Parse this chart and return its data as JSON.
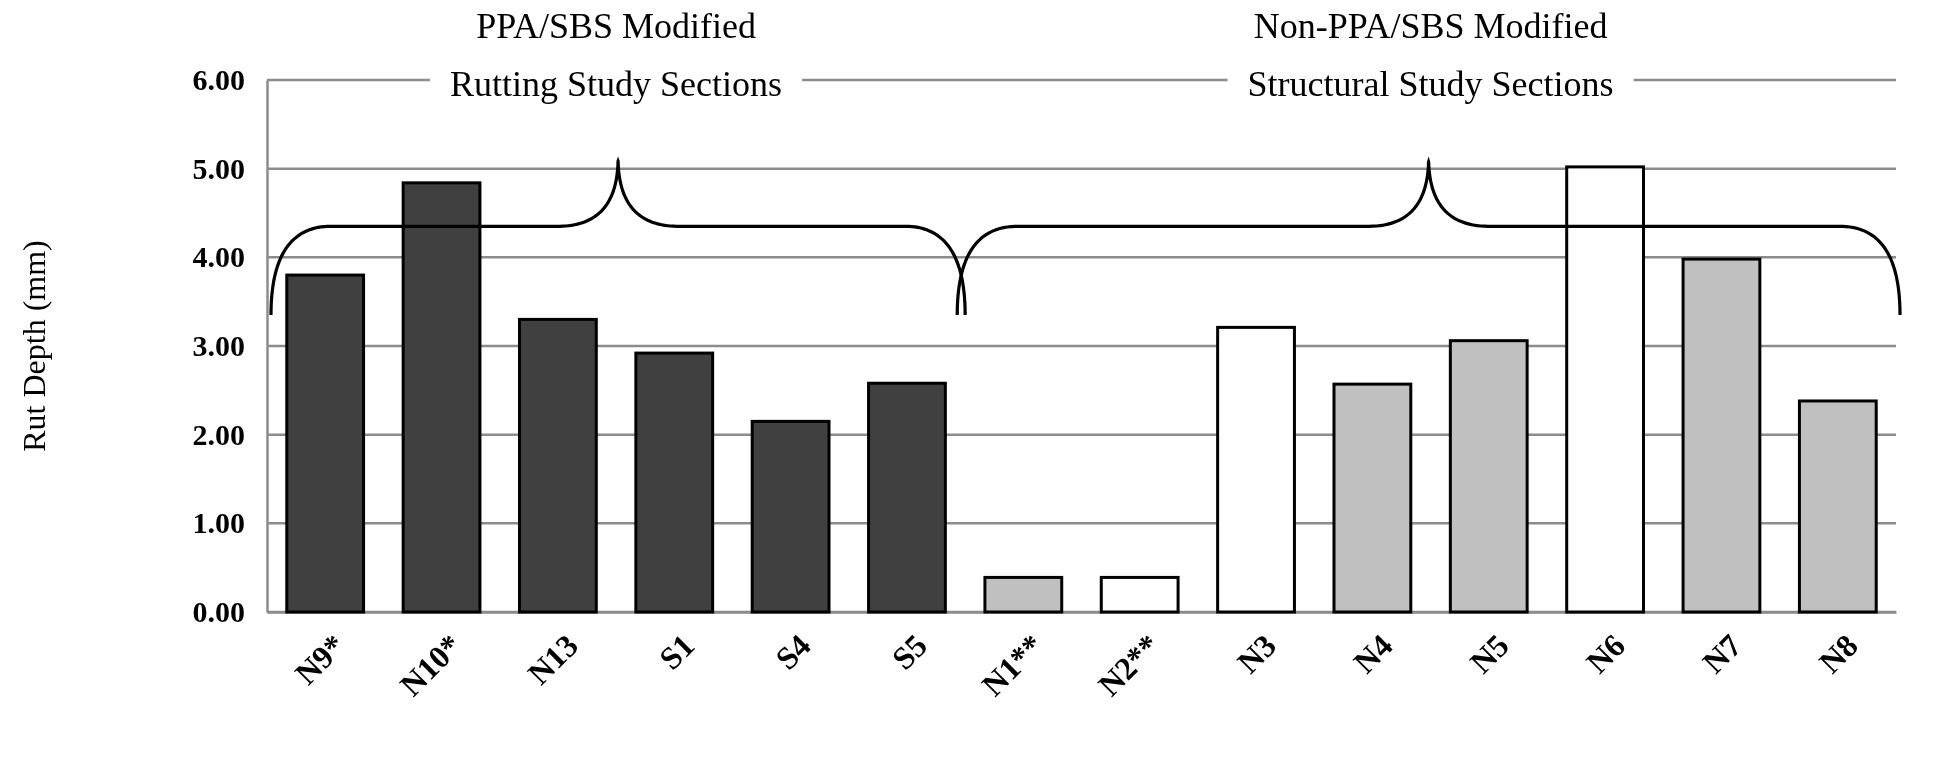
{
  "chart_data": {
    "type": "bar",
    "ylabel": "Rut Depth (mm)",
    "categories": [
      "N9*",
      "N10*",
      "N13",
      "S1",
      "S4",
      "S5",
      "N1**",
      "N2**",
      "N3",
      "N4",
      "N5",
      "N6",
      "N7",
      "N8"
    ],
    "values": [
      3.8,
      4.84,
      3.3,
      2.92,
      2.15,
      2.58,
      0.39,
      0.39,
      3.21,
      2.57,
      3.06,
      5.02,
      3.98,
      2.38
    ],
    "colors": [
      "#404040",
      "#404040",
      "#404040",
      "#404040",
      "#404040",
      "#404040",
      "#c0c0c0",
      "#ffffff",
      "#ffffff",
      "#c0c0c0",
      "#c0c0c0",
      "#ffffff",
      "#c0c0c0",
      "#c0c0c0"
    ],
    "ylim": [
      0,
      6
    ],
    "yticks": [
      {
        "value": 0,
        "label": "0.00"
      },
      {
        "value": 1,
        "label": "1.00"
      },
      {
        "value": 2,
        "label": "2.00"
      },
      {
        "value": 3,
        "label": "3.00"
      },
      {
        "value": 4,
        "label": "4.00"
      },
      {
        "value": 5,
        "label": "5.00"
      },
      {
        "value": 6,
        "label": "6.00"
      }
    ],
    "grid": "y",
    "annotations": [
      "PPA/SBS Modified\nRutting Study Sections",
      "Non-PPA/SBS Modified\nStructural Study Sections"
    ]
  }
}
